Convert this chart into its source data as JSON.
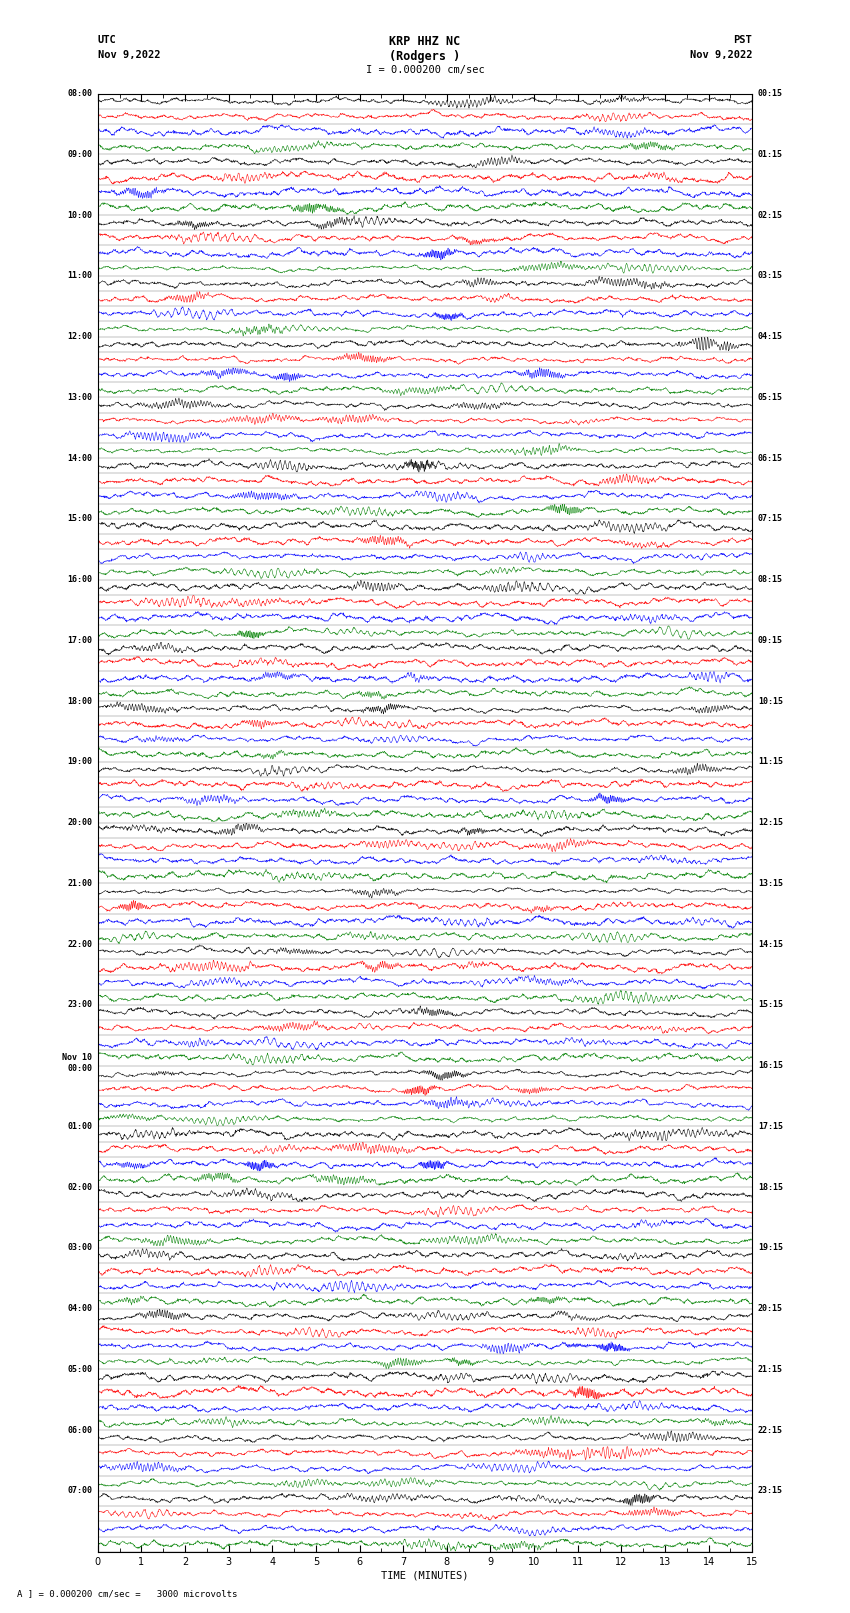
{
  "title_line1": "KRP HHZ NC",
  "title_line2": "(Rodgers )",
  "title_line3": "I = 0.000200 cm/sec",
  "utc_label": "UTC",
  "utc_date": "Nov 9,2022",
  "pst_label": "PST",
  "pst_date": "Nov 9,2022",
  "xlabel": "TIME (MINUTES)",
  "scale_label": "= 0.000200 cm/sec =   3000 microvolts",
  "scale_prefix": "A",
  "left_times": [
    "08:00",
    "09:00",
    "10:00",
    "11:00",
    "12:00",
    "13:00",
    "14:00",
    "15:00",
    "16:00",
    "17:00",
    "18:00",
    "19:00",
    "20:00",
    "21:00",
    "22:00",
    "23:00",
    "Nov 10\n00:00",
    "01:00",
    "02:00",
    "03:00",
    "04:00",
    "05:00",
    "06:00",
    "07:00"
  ],
  "right_times": [
    "00:15",
    "01:15",
    "02:15",
    "03:15",
    "04:15",
    "05:15",
    "06:15",
    "07:15",
    "08:15",
    "09:15",
    "10:15",
    "11:15",
    "12:15",
    "13:15",
    "14:15",
    "15:15",
    "16:15",
    "17:15",
    "18:15",
    "19:15",
    "20:15",
    "21:15",
    "22:15",
    "23:15"
  ],
  "num_hours": 24,
  "traces_per_hour": 4,
  "colors_per_hour": [
    "black",
    "red",
    "blue",
    "green"
  ],
  "bg_color": "white",
  "fig_width": 8.5,
  "fig_height": 16.13,
  "dpi": 100,
  "x_lim": [
    0,
    15
  ],
  "seed": 42
}
